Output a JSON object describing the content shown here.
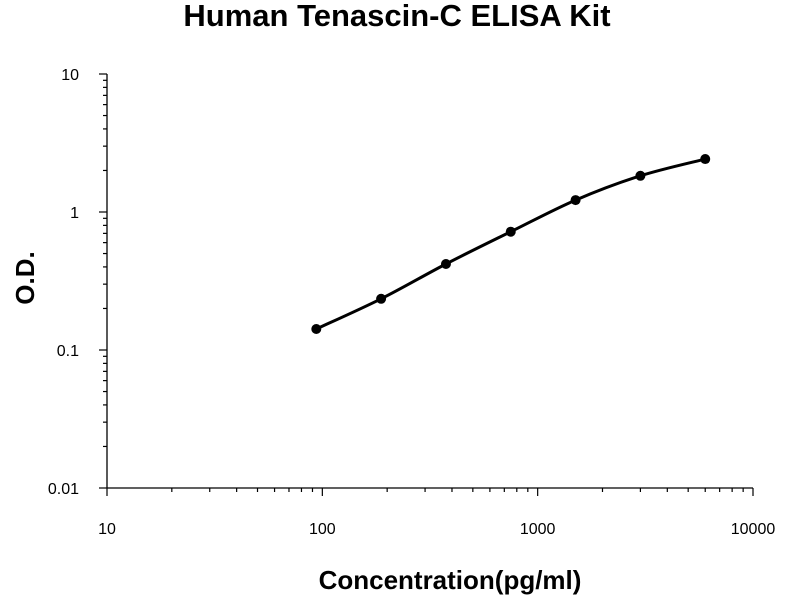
{
  "chart_data": {
    "type": "scatter",
    "title": "Human Tenascin-C ELISA Kit",
    "xlabel": "Concentration(pg/ml)",
    "ylabel": "O.D.",
    "x_scale": "log",
    "y_scale": "log",
    "xlim": [
      10,
      10000
    ],
    "ylim": [
      0.01,
      10
    ],
    "x_ticks": [
      "10",
      "100",
      "1000",
      "10000"
    ],
    "y_ticks": [
      "0.01",
      "0.1",
      "1",
      "10"
    ],
    "grid": false,
    "legend": "none",
    "series": [
      {
        "x": [
          93.75,
          187.5,
          375,
          750,
          1500,
          3000,
          6000
        ],
        "y": [
          0.142,
          0.235,
          0.42,
          0.72,
          1.22,
          1.83,
          2.42
        ],
        "marker": "circle",
        "line": "smooth",
        "color": "#000000"
      }
    ]
  }
}
